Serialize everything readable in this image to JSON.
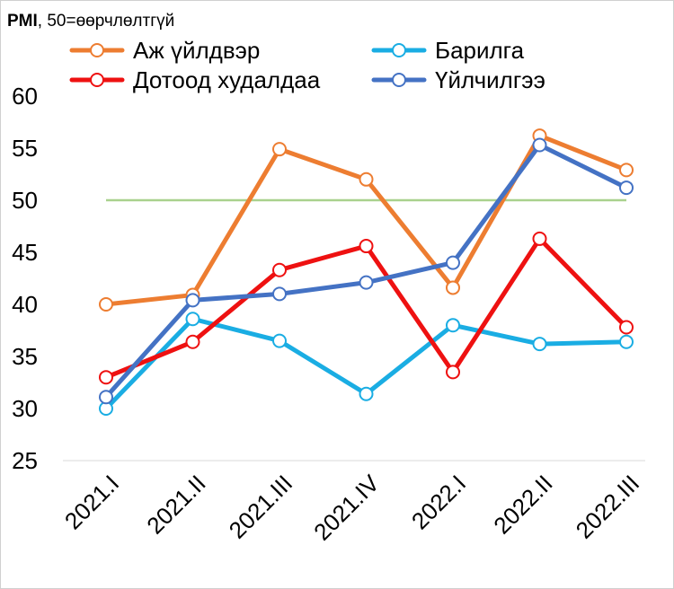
{
  "chart_data": {
    "type": "line",
    "title_bold": "PMI",
    "title_rest": ", 50=өөрчлөлтгүй",
    "categories": [
      "2021.I",
      "2021.II",
      "2021.III",
      "2021.IV",
      "2022.I",
      "2022.II",
      "2022.III"
    ],
    "ylim": [
      25,
      60
    ],
    "yticks": [
      60,
      55,
      50,
      45,
      40,
      35,
      30,
      25
    ],
    "reference_line": 50,
    "series": [
      {
        "name": "Аж үйлдвэр",
        "color": "#ED7D31",
        "values": [
          40.0,
          40.9,
          54.9,
          52.0,
          41.6,
          56.2,
          52.9
        ]
      },
      {
        "name": "Барилга",
        "color": "#1AADE3",
        "values": [
          30.0,
          38.6,
          36.5,
          31.4,
          38.0,
          36.2,
          36.4
        ]
      },
      {
        "name": "Дотоод худалдаа",
        "color": "#EE1111",
        "values": [
          33.0,
          36.4,
          43.3,
          45.6,
          33.5,
          46.3,
          37.8
        ]
      },
      {
        "name": "Үйлчилгээ",
        "color": "#4472C4",
        "values": [
          31.1,
          40.4,
          41.0,
          42.1,
          44.0,
          55.3,
          51.2
        ]
      }
    ],
    "reference_color": "#A9D18E",
    "legend_position": "top"
  }
}
